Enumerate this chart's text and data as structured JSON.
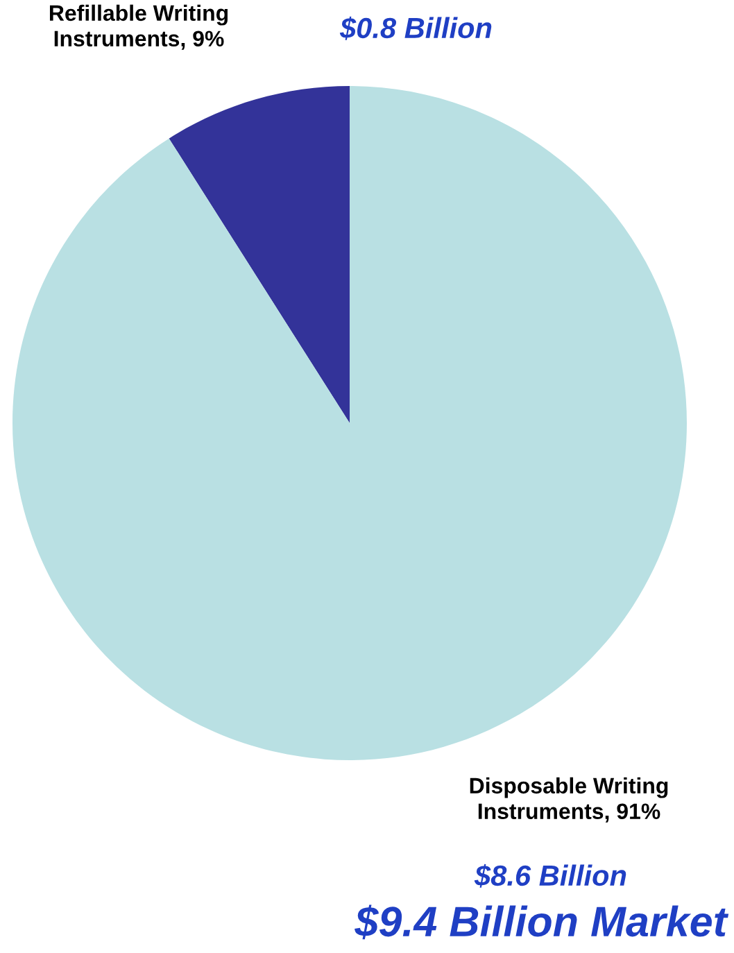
{
  "chart_data": {
    "type": "pie",
    "title": "$9.4 Billion Market",
    "categories": [
      "Refillable Writing\nInstruments, 9%",
      "Disposable Writing\nInstruments, 91%"
    ],
    "values": [
      9,
      91
    ],
    "colors": [
      "#333399",
      "#b9e0e3"
    ],
    "annotations": [
      "$0.8 Billion",
      "$8.6 Billion"
    ]
  }
}
